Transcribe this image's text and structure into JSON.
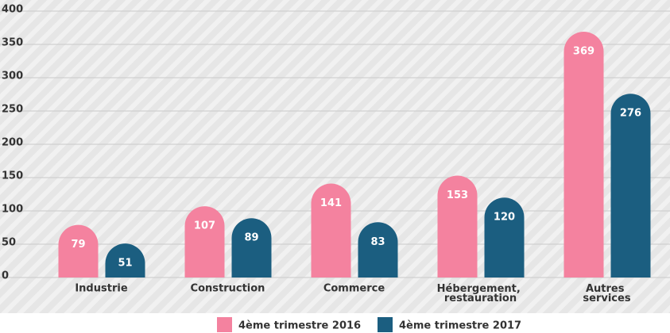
{
  "chart_data": {
    "type": "bar",
    "categories": [
      "Industrie",
      "Construction",
      "Commerce",
      "Hébergement, restauration",
      "Autres services"
    ],
    "series": [
      {
        "name": "4ème trimestre 2016",
        "color": "#f4829f",
        "values": [
          79,
          107,
          141,
          153,
          369
        ]
      },
      {
        "name": "4ème trimestre 2017",
        "color": "#1b5e80",
        "values": [
          51,
          89,
          83,
          120,
          276
        ]
      }
    ],
    "ylim": [
      0,
      400
    ],
    "yticks": [
      0,
      50,
      100,
      150,
      200,
      250,
      300,
      350,
      400
    ],
    "grid": true
  }
}
